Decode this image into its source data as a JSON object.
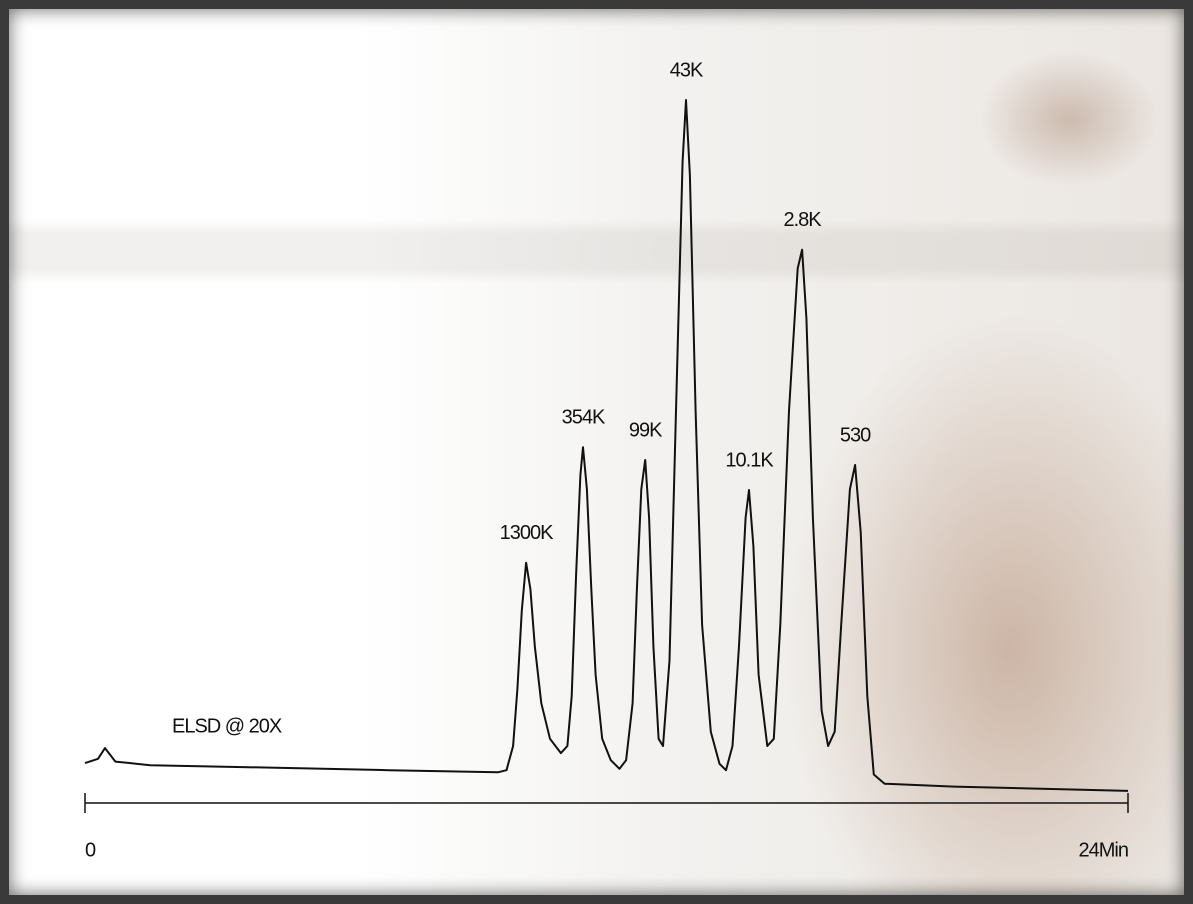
{
  "chart_data": {
    "type": "line",
    "x": [
      0,
      0.3,
      0.46,
      0.7,
      1.5,
      4,
      7,
      9.5,
      9.7,
      9.85,
      9.95,
      10.05,
      10.15,
      10.25,
      10.35,
      10.5,
      10.7,
      10.95,
      11.1,
      11.2,
      11.3,
      11.4,
      11.46,
      11.55,
      11.65,
      11.75,
      11.9,
      12.1,
      12.3,
      12.45,
      12.6,
      12.7,
      12.8,
      12.89,
      12.98,
      13.08,
      13.2,
      13.3,
      13.45,
      13.6,
      13.75,
      13.83,
      13.92,
      14.05,
      14.2,
      14.4,
      14.6,
      14.75,
      14.9,
      15.05,
      15.2,
      15.28,
      15.38,
      15.5,
      15.7,
      15.85,
      16.0,
      16.2,
      16.4,
      16.5,
      16.6,
      16.75,
      16.95,
      17.1,
      17.25,
      17.4,
      17.6,
      17.72,
      17.85,
      18.0,
      18.15,
      18.4,
      20,
      24
    ],
    "series": [
      {
        "name": "ELSD @ 20X",
        "color": "#111111",
        "values": [
          5.6,
          6.2,
          7.7,
          5.8,
          5.3,
          5.0,
          4.6,
          4.3,
          4.6,
          8,
          16,
          27,
          33.7,
          30,
          22,
          14,
          9,
          7,
          8,
          15,
          32,
          46,
          49.9,
          44,
          30,
          18,
          9,
          6,
          4.8,
          6,
          14,
          30,
          44,
          48.1,
          40,
          22,
          9,
          8,
          20,
          55,
          90,
          98.6,
          88,
          55,
          25,
          10,
          5.5,
          4.6,
          8,
          22,
          40,
          43.9,
          36,
          18,
          8,
          9,
          25,
          55,
          75,
          77.6,
          68,
          40,
          13,
          8,
          10,
          25,
          44,
          47.4,
          38,
          15,
          4,
          2.7,
          2.3,
          1.7
        ]
      }
    ],
    "annotations": [
      {
        "text": "1300K",
        "x": 10.15
      },
      {
        "text": "354K",
        "x": 11.46
      },
      {
        "text": "99K",
        "x": 12.89
      },
      {
        "text": "43K",
        "x": 13.83
      },
      {
        "text": "10.1K",
        "x": 15.28
      },
      {
        "text": "2.8K",
        "x": 16.5
      },
      {
        "text": "530",
        "x": 17.72
      }
    ],
    "xlim": [
      0,
      24
    ],
    "xticks": [
      0,
      {
        "value": 24,
        "label": "24Min"
      }
    ],
    "ylim": [
      0,
      100
    ]
  }
}
